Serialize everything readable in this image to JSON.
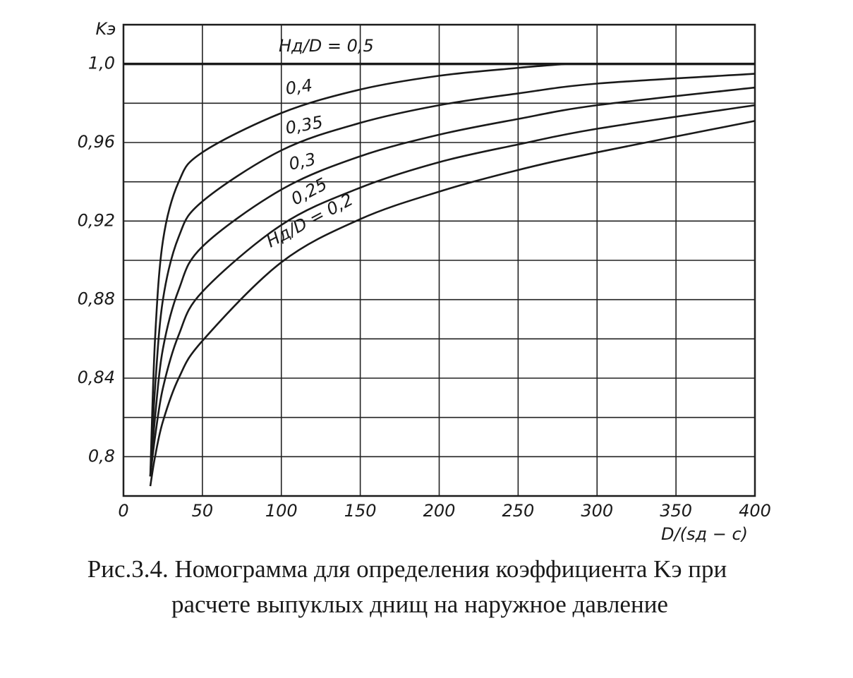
{
  "chart_data": {
    "type": "line",
    "ylabel": "Kэ",
    "xlabel": "D/(sд − c)",
    "caption": [
      "Рис.3.4. Номограмма для определения коэффициента Kэ при",
      "расчете выпуклых днищ на наружное давление"
    ],
    "xlim": [
      0,
      400
    ],
    "xticks": [
      0,
      50,
      100,
      150,
      200,
      250,
      300,
      350,
      400
    ],
    "ylim": [
      0.78,
      1.02
    ],
    "yticks": [
      {
        "value": 0.8,
        "label": "0,8"
      },
      {
        "value": 0.84,
        "label": "0,84"
      },
      {
        "value": 0.88,
        "label": "0,88"
      },
      {
        "value": 0.92,
        "label": "0,92"
      },
      {
        "value": 0.96,
        "label": "0,96"
      },
      {
        "value": 1.0,
        "label": "1,0"
      }
    ],
    "y_minor_ticks": [
      0.82,
      0.86,
      0.9,
      0.94,
      0.98
    ],
    "grid": true,
    "color": "#1a1a1a",
    "series": [
      {
        "name": "Hд/D = 0,5",
        "x": [
          0,
          400
        ],
        "values": [
          1.0,
          1.0
        ]
      },
      {
        "name": "0,4",
        "x": [
          17,
          20,
          25,
          35,
          50,
          100,
          150,
          200,
          250,
          280
        ],
        "values": [
          0.79,
          0.86,
          0.91,
          0.94,
          0.955,
          0.975,
          0.987,
          0.994,
          0.998,
          1.0
        ]
      },
      {
        "name": "0,35",
        "x": [
          17,
          20,
          25,
          35,
          50,
          100,
          150,
          200,
          250,
          300,
          400
        ],
        "values": [
          0.79,
          0.835,
          0.88,
          0.912,
          0.93,
          0.956,
          0.97,
          0.979,
          0.985,
          0.99,
          0.995
        ]
      },
      {
        "name": "0,3",
        "x": [
          17,
          20,
          25,
          35,
          50,
          100,
          150,
          200,
          250,
          300,
          400
        ],
        "values": [
          0.79,
          0.82,
          0.855,
          0.885,
          0.907,
          0.936,
          0.953,
          0.964,
          0.972,
          0.979,
          0.988
        ]
      },
      {
        "name": "0,25",
        "x": [
          17,
          20,
          25,
          35,
          50,
          100,
          150,
          200,
          250,
          300,
          400
        ],
        "values": [
          0.79,
          0.81,
          0.835,
          0.862,
          0.884,
          0.918,
          0.937,
          0.95,
          0.959,
          0.967,
          0.979
        ]
      },
      {
        "name": "Hд/D = 0,2",
        "x": [
          17,
          20,
          25,
          35,
          50,
          100,
          150,
          200,
          250,
          300,
          400
        ],
        "values": [
          0.785,
          0.8,
          0.818,
          0.84,
          0.859,
          0.899,
          0.921,
          0.935,
          0.946,
          0.955,
          0.971
        ]
      }
    ]
  }
}
